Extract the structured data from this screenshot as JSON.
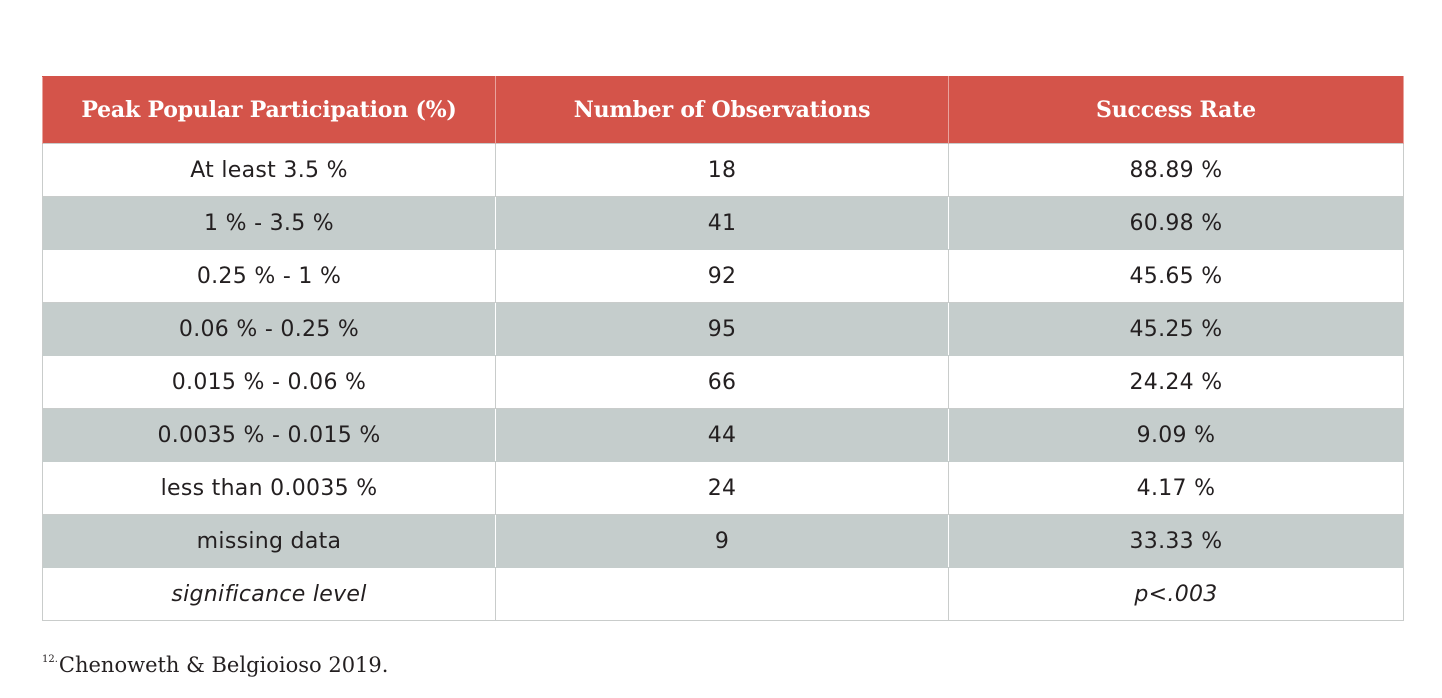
{
  "table": {
    "headers": [
      "Peak Popular Participation (%)",
      "Number of Observations",
      "Success Rate"
    ],
    "rows": [
      {
        "participation": "At least 3.5 %",
        "observations": "18",
        "success_rate": "88.89 %"
      },
      {
        "participation": "1 % - 3.5 %",
        "observations": "41",
        "success_rate": "60.98 %"
      },
      {
        "participation": "0.25 % - 1 %",
        "observations": "92",
        "success_rate": "45.65 %"
      },
      {
        "participation": "0.06 % - 0.25 %",
        "observations": "95",
        "success_rate": "45.25 %"
      },
      {
        "participation": "0.015 % - 0.06 %",
        "observations": "66",
        "success_rate": "24.24 %"
      },
      {
        "participation": "0.0035 % - 0.015 %",
        "observations": "44",
        "success_rate": "9.09 %"
      },
      {
        "participation": "less than 0.0035 %",
        "observations": "24",
        "success_rate": "4.17 %"
      },
      {
        "participation": "missing data",
        "observations": "9",
        "success_rate": "33.33 %"
      }
    ],
    "significance": {
      "label": "significance level",
      "observations": "",
      "value": "p<.003"
    }
  },
  "colors": {
    "header_bg": "#d4544a",
    "shaded_row_bg": "#c5cdcc"
  },
  "footnote": {
    "marker": "12.",
    "text": "Chenoweth & Belgioioso 2019."
  }
}
